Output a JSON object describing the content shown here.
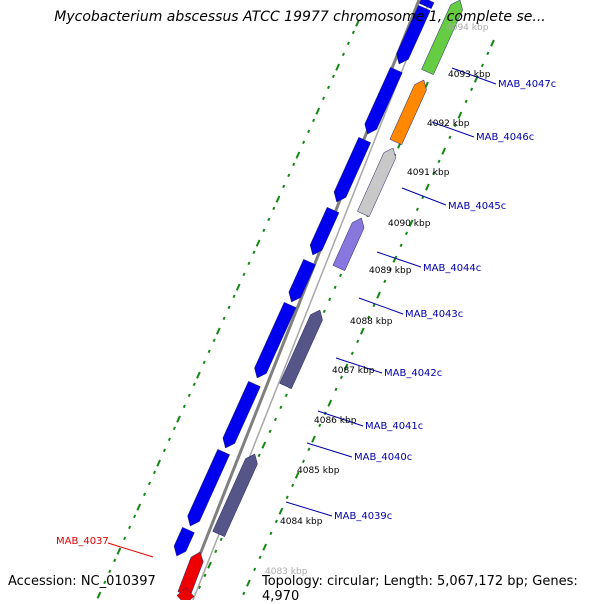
{
  "map": {
    "title": "Mycobacterium abscessus ATCC 19977 chromosome 1, complete se...",
    "accession_label": "Accession: NC_010397",
    "summary_label": "Topology: circular; Length: 5,067,172 bp; Genes: 4,970"
  },
  "colors": {
    "forward_strand": "#0000ee",
    "backbone": "#808080",
    "tick": "#118811",
    "label_normal": "#0000aa",
    "label_highlight": "#dd0000",
    "bp_label": "#000000"
  },
  "kbp_labels": [
    "4094 kbp",
    "4093 kbp",
    "4092 kbp",
    "4091 kbp",
    "4090 kbp",
    "4089 kbp",
    "4088 kbp",
    "4087 kbp",
    "4086 kbp",
    "4085 kbp",
    "4084 kbp",
    "4083 kbp"
  ],
  "gene_labels": [
    {
      "name": "MAB_4047c",
      "color": "#0000aa"
    },
    {
      "name": "MAB_4046c",
      "color": "#0000aa"
    },
    {
      "name": "MAB_4045c",
      "color": "#0000aa"
    },
    {
      "name": "MAB_4044c",
      "color": "#0000aa"
    },
    {
      "name": "MAB_4043c",
      "color": "#0000aa"
    },
    {
      "name": "MAB_4042c",
      "color": "#0000aa"
    },
    {
      "name": "MAB_4041c",
      "color": "#0000aa"
    },
    {
      "name": "MAB_4040c",
      "color": "#0000aa"
    },
    {
      "name": "MAB_4039c",
      "color": "#0000aa"
    },
    {
      "name": "MAB_4037",
      "color": "#dd0000"
    }
  ],
  "reverse_features": [
    {
      "name": "MAB_4047c",
      "color": "#66cc44"
    },
    {
      "name": "MAB_4046c",
      "color": "#ff8800"
    },
    {
      "name": "MAB_4045c",
      "color": "#c8c8c8"
    },
    {
      "name": "MAB_4044c",
      "color": "#8877dd"
    },
    {
      "name": "MAB_4042c",
      "color": "#555588"
    },
    {
      "name": "MAB_4039c",
      "color": "#555588"
    }
  ],
  "forward_feature_count": 12,
  "red_feature_count": 2
}
